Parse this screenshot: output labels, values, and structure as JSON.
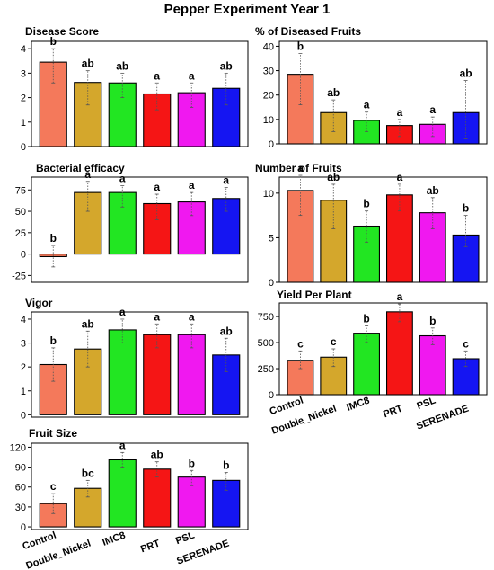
{
  "figure": {
    "title": "Pepper Experiment Year 1"
  },
  "colors": {
    "Control": "#f4795b",
    "Double_Nickel": "#d4a72c",
    "IMC8": "#22e622",
    "PRT": "#f51515",
    "PSL": "#f018f0",
    "SERENADE": "#1515f2"
  },
  "chart_data": [
    {
      "id": "disease-score",
      "type": "bar",
      "title": "Disease Score",
      "categories": [
        "Control",
        "Double_Nickel",
        "IMC8",
        "PRT",
        "PSL",
        "SERENADE"
      ],
      "values": [
        3.45,
        2.62,
        2.6,
        2.15,
        2.2,
        2.38
      ],
      "error_bars": [
        [
          2.6,
          4.0
        ],
        [
          1.7,
          3.1
        ],
        [
          2.0,
          3.0
        ],
        [
          1.5,
          2.6
        ],
        [
          1.6,
          2.6
        ],
        [
          1.7,
          3.0
        ]
      ],
      "letters": [
        "b",
        "ab",
        "ab",
        "a",
        "a",
        "ab"
      ],
      "ylim": [
        0,
        4.3
      ],
      "yticks": [
        "0",
        "1",
        "2",
        "3",
        "4"
      ],
      "ytick_values": [
        0,
        1,
        2,
        3,
        4
      ],
      "show_xticks": false
    },
    {
      "id": "diseased-fruits",
      "type": "bar",
      "title": "% of Diseased Fruits",
      "categories": [
        "Control",
        "Double_Nickel",
        "IMC8",
        "PRT",
        "PSL",
        "SERENADE"
      ],
      "values": [
        28.5,
        12.8,
        9.6,
        7.5,
        8.0,
        12.8
      ],
      "error_bars": [
        [
          16,
          37
        ],
        [
          5,
          18
        ],
        [
          5,
          13
        ],
        [
          3,
          10
        ],
        [
          3,
          11
        ],
        [
          2,
          26
        ]
      ],
      "letters": [
        "b",
        "ab",
        "a",
        "a",
        "a",
        "ab"
      ],
      "ylim": [
        0,
        42
      ],
      "yticks": [
        "0",
        "10",
        "20",
        "30",
        "40"
      ],
      "ytick_values": [
        0,
        10,
        20,
        30,
        40
      ],
      "show_xticks": false
    },
    {
      "id": "bacterial-efficacy",
      "type": "bar",
      "title": "Bacterial efficacy",
      "categories": [
        "Control",
        "Double_Nickel",
        "IMC8",
        "PRT",
        "PSL",
        "SERENADE"
      ],
      "values": [
        -3,
        72,
        72,
        59,
        61,
        65
      ],
      "error_bars": [
        [
          -15,
          10
        ],
        [
          50,
          85
        ],
        [
          55,
          80
        ],
        [
          40,
          70
        ],
        [
          45,
          72
        ],
        [
          50,
          78
        ]
      ],
      "letters": [
        "b",
        "a",
        "a",
        "a",
        "a",
        "a"
      ],
      "ylim": [
        -33,
        90
      ],
      "yticks": [
        "-25",
        "0",
        "25",
        "50",
        "75"
      ],
      "ytick_values": [
        -25,
        0,
        25,
        50,
        75
      ],
      "show_xticks": false
    },
    {
      "id": "number-of-fruits",
      "type": "bar",
      "title": "Number of Fruits",
      "categories": [
        "Control",
        "Double_Nickel",
        "IMC8",
        "PRT",
        "PSL",
        "SERENADE"
      ],
      "values": [
        10.3,
        9.2,
        6.3,
        9.8,
        7.8,
        5.3
      ],
      "error_bars": [
        [
          7.5,
          12
        ],
        [
          6,
          11
        ],
        [
          4.5,
          8
        ],
        [
          8,
          11
        ],
        [
          6,
          9.5
        ],
        [
          4,
          7.5
        ]
      ],
      "letters": [
        "a",
        "ab",
        "b",
        "a",
        "ab",
        "b"
      ],
      "ylim": [
        0,
        11.8
      ],
      "yticks": [
        "0",
        "5",
        "10"
      ],
      "ytick_values": [
        0,
        5,
        10
      ],
      "show_xticks": false
    },
    {
      "id": "vigor",
      "type": "bar",
      "title": "Vigor",
      "categories": [
        "Control",
        "Double_Nickel",
        "IMC8",
        "PRT",
        "PSL",
        "SERENADE"
      ],
      "values": [
        2.1,
        2.75,
        3.55,
        3.35,
        3.35,
        2.5
      ],
      "error_bars": [
        [
          1.4,
          2.8
        ],
        [
          2.0,
          3.5
        ],
        [
          3.0,
          4.0
        ],
        [
          2.8,
          3.8
        ],
        [
          2.8,
          3.8
        ],
        [
          1.8,
          3.2
        ]
      ],
      "letters": [
        "b",
        "ab",
        "a",
        "a",
        "a",
        "ab"
      ],
      "ylim": [
        -0.1,
        4.3
      ],
      "yticks": [
        "0",
        "1",
        "2",
        "3",
        "4"
      ],
      "ytick_values": [
        0,
        1,
        2,
        3,
        4
      ],
      "show_xticks": false
    },
    {
      "id": "yield-per-plant",
      "type": "bar",
      "title": "Yield Per Plant",
      "categories": [
        "Control",
        "Double_Nickel",
        "IMC8",
        "PRT",
        "PSL",
        "SERENADE"
      ],
      "values": [
        330,
        360,
        590,
        795,
        565,
        345
      ],
      "error_bars": [
        [
          250,
          420
        ],
        [
          270,
          440
        ],
        [
          500,
          660
        ],
        [
          700,
          870
        ],
        [
          480,
          640
        ],
        [
          270,
          420
        ]
      ],
      "letters": [
        "c",
        "c",
        "b",
        "a",
        "b",
        "c"
      ],
      "ylim": [
        0,
        880
      ],
      "yticks": [
        "0",
        "250",
        "500",
        "750"
      ],
      "ytick_values": [
        0,
        250,
        500,
        750
      ],
      "show_xticks": true
    },
    {
      "id": "fruit-size",
      "type": "bar",
      "title": "Fruit Size",
      "categories": [
        "Control",
        "Double_Nickel",
        "IMC8",
        "PRT",
        "PSL",
        "SERENADE"
      ],
      "values": [
        35,
        58,
        101,
        87,
        75,
        70
      ],
      "error_bars": [
        [
          20,
          50
        ],
        [
          45,
          70
        ],
        [
          90,
          112
        ],
        [
          75,
          98
        ],
        [
          62,
          85
        ],
        [
          55,
          82
        ]
      ],
      "letters": [
        "c",
        "bc",
        "a",
        "ab",
        "b",
        "b"
      ],
      "ylim": [
        -4,
        126
      ],
      "yticks": [
        "0",
        "30",
        "60",
        "90",
        "120"
      ],
      "ytick_values": [
        0,
        30,
        60,
        90,
        120
      ],
      "show_xticks": true
    }
  ]
}
